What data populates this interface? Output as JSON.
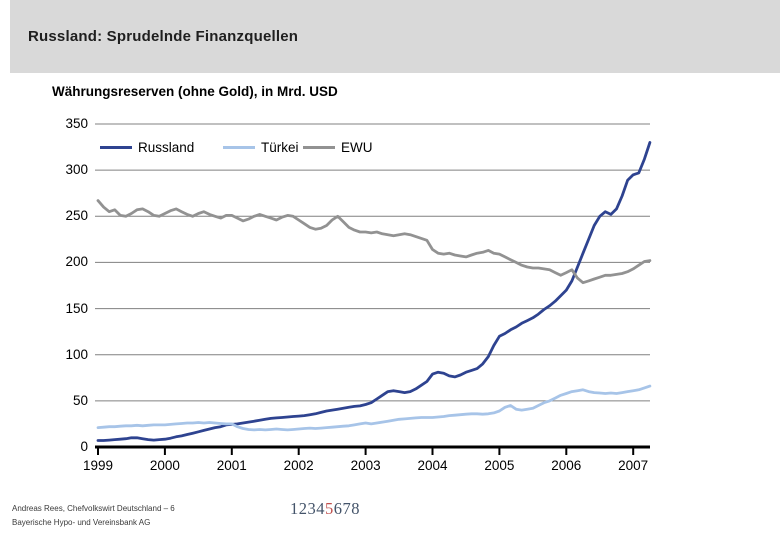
{
  "header": {
    "title": "Russland: Sprudelnde Finanzquellen"
  },
  "footer": {
    "credit_line1": "Andreas Rees, Chefvolkswirt Deutschland – 6",
    "credit_line2": "Bayerische Hypo- und Vereinsbank AG",
    "page_digits_before": "1234",
    "page_digit_current": "5",
    "page_digits_after": "678"
  },
  "colors": {
    "header_band": "#d9d9d9",
    "russland_line": "#2e4390",
    "tuerkei_line": "#a7c4e8",
    "ewu_line": "#929292",
    "gridline": "#808080",
    "axis": "#000000",
    "page_digit_normal": "#44546a",
    "page_digit_active": "#c0504d"
  },
  "chart_data": {
    "type": "line",
    "title": "Währungsreserven (ohne Gold), in Mrd. USD",
    "xlabel": "",
    "ylabel": "",
    "ylim": [
      0,
      350
    ],
    "grid": true,
    "legend_position": "top-left-inside",
    "y_ticks": [
      0,
      50,
      100,
      150,
      200,
      250,
      300,
      350
    ],
    "x_tick_labels": [
      "1999",
      "2000",
      "2001",
      "2002",
      "2003",
      "2004",
      "2005",
      "2006",
      "2007"
    ],
    "x_unit": "monthly from Jan 1999 to Apr 2007",
    "series": [
      {
        "name": "Russland",
        "color": "#2e4390",
        "values": [
          7,
          7,
          7.5,
          8,
          8.5,
          9,
          10,
          10,
          9,
          8,
          7.5,
          8,
          8.5,
          9.5,
          11,
          12,
          13.5,
          15,
          16.5,
          18,
          19.5,
          21,
          22,
          24,
          24.5,
          25,
          26,
          27,
          28,
          29,
          30,
          31,
          31.5,
          32,
          32.5,
          33,
          33.5,
          34,
          35,
          36,
          37.5,
          39,
          40,
          41,
          42,
          43,
          44,
          44.5,
          46,
          48,
          52,
          56,
          60,
          61,
          60,
          59,
          60,
          63,
          67,
          71,
          79,
          81,
          80,
          77,
          76,
          78,
          81,
          83,
          85,
          90,
          98,
          110,
          120,
          123,
          127,
          130,
          134,
          137,
          140,
          144,
          149,
          153,
          158,
          164,
          170,
          180,
          195,
          210,
          225,
          240,
          250,
          255,
          252,
          258,
          272,
          289,
          295,
          297,
          312,
          330
        ]
      },
      {
        "name": "Türkei",
        "color": "#a7c4e8",
        "values": [
          21,
          21.5,
          22,
          22,
          22.5,
          23,
          23,
          23.5,
          23,
          23.5,
          24,
          24,
          24,
          24.5,
          25,
          25.5,
          26,
          26,
          26.5,
          26,
          26.5,
          26,
          25.5,
          25,
          25,
          22,
          20,
          19,
          18.5,
          19,
          18.5,
          19,
          19.5,
          19,
          18.5,
          19,
          19.5,
          20,
          20.5,
          20,
          20.5,
          21,
          21.5,
          22,
          22.5,
          23,
          24,
          25,
          26,
          25,
          26,
          27,
          28,
          29,
          30,
          30.5,
          31,
          31.5,
          32,
          32,
          32,
          32.5,
          33,
          34,
          34.5,
          35,
          35.5,
          36,
          36,
          35.5,
          36,
          37,
          39,
          43,
          45,
          41,
          40,
          41,
          42,
          45,
          48,
          50,
          53,
          56,
          58,
          60,
          61,
          62,
          60,
          59,
          58.5,
          58,
          58.5,
          58,
          59,
          60,
          61,
          62,
          64,
          66
        ]
      },
      {
        "name": "EWU",
        "color": "#929292",
        "values": [
          267,
          260,
          255,
          257,
          251,
          250,
          253,
          257,
          258,
          255,
          251,
          250,
          253,
          256,
          258,
          255,
          252,
          250,
          253,
          255,
          252,
          250,
          248,
          251,
          251,
          248,
          245,
          247,
          250,
          252,
          250,
          248,
          246,
          249,
          251,
          250,
          246,
          242,
          238,
          236,
          237,
          240,
          246,
          250,
          244,
          238,
          235,
          233,
          233,
          232,
          233,
          231,
          230,
          229,
          230,
          231,
          230,
          228,
          226,
          224,
          214,
          210,
          209,
          210,
          208,
          207,
          206,
          208,
          210,
          211,
          213,
          210,
          209,
          206,
          203,
          200,
          197,
          195,
          194,
          194,
          193,
          192,
          189,
          186,
          189,
          192,
          183,
          178,
          180,
          182,
          184,
          186,
          186,
          187,
          188,
          190,
          193,
          197,
          201,
          202
        ]
      }
    ]
  }
}
